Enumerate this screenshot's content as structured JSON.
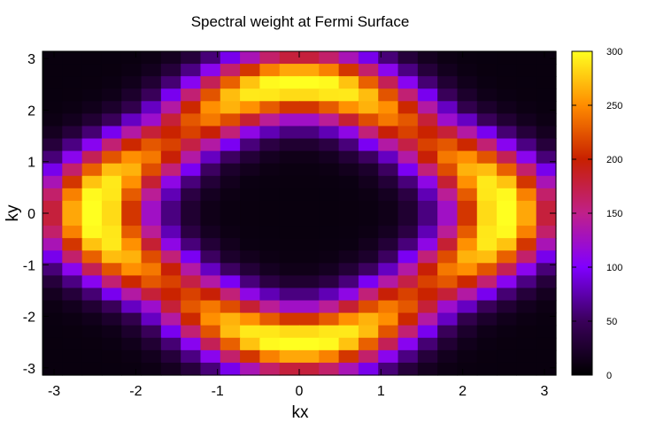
{
  "chart_data": {
    "type": "heatmap",
    "title": "Spectral weight at Fermi Surface",
    "xlabel": "kx",
    "ylabel": "ky",
    "xlim": [
      -3.1416,
      3.1416
    ],
    "ylim": [
      -3.1416,
      3.1416
    ],
    "x_ticks": [
      -3,
      -2,
      -1,
      0,
      1,
      2,
      3
    ],
    "y_ticks": [
      -3,
      -2,
      -1,
      0,
      1,
      2,
      3
    ],
    "colorbar": {
      "range": [
        0,
        300
      ],
      "ticks": [
        0,
        50,
        100,
        150,
        200,
        250,
        300
      ],
      "palette": [
        "#000000",
        "#3a005a",
        "#8000ff",
        "#c0208a",
        "#c82000",
        "#ff8c00",
        "#ffff20"
      ]
    },
    "grid": "off",
    "n_cells_x": 26,
    "n_cells_y": 26,
    "z_peak": 300,
    "z_center": 8,
    "z_corner": 5,
    "feature": "ring of high spectral weight centered at (0,0); peaks near (0, ±2.8) and (±2.8, 0); near-zero weight at center and corners"
  }
}
